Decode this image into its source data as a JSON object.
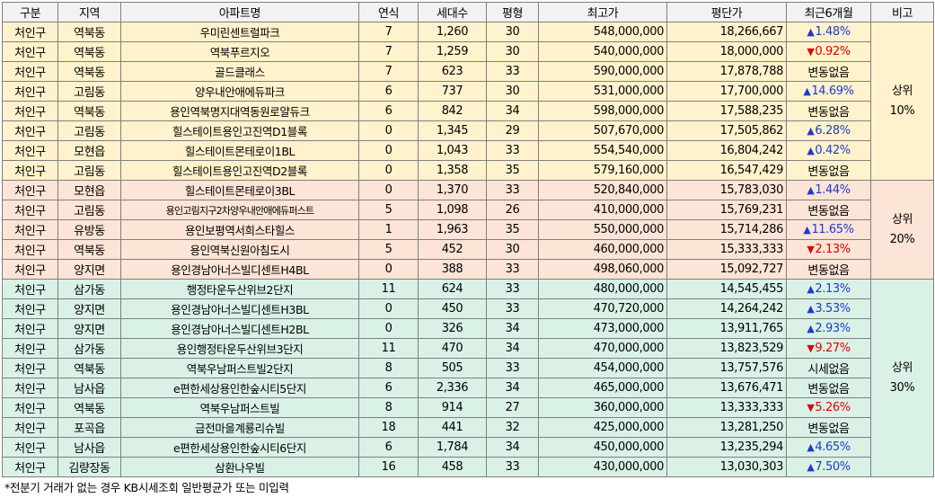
{
  "headers": [
    "구분",
    "지역",
    "아파트명",
    "연식",
    "세대수",
    "평형",
    "최고가",
    "평단가",
    "최근6개월",
    "비고"
  ],
  "tiers": [
    {
      "label_top": "상위",
      "label_bottom": "10%",
      "color": "#fff2cc",
      "rows": [
        {
          "gu": "처인구",
          "dong": "역북동",
          "apt": "우미린센트럴파크",
          "age": "7",
          "units": "1,260",
          "pyeong": "30",
          "max_price": "548,000,000",
          "per_pyeong": "18,266,667",
          "trend": "up",
          "change": "1.48%"
        },
        {
          "gu": "처인구",
          "dong": "역북동",
          "apt": "역북푸르지오",
          "age": "7",
          "units": "1,259",
          "pyeong": "30",
          "max_price": "540,000,000",
          "per_pyeong": "18,000,000",
          "trend": "down",
          "change": "0.92%"
        },
        {
          "gu": "처인구",
          "dong": "역북동",
          "apt": "골드클래스",
          "age": "7",
          "units": "623",
          "pyeong": "33",
          "max_price": "590,000,000",
          "per_pyeong": "17,878,788",
          "trend": "none",
          "change": "변동없음"
        },
        {
          "gu": "처인구",
          "dong": "고림동",
          "apt": "양우내안애에듀파크",
          "age": "6",
          "units": "737",
          "pyeong": "30",
          "max_price": "531,000,000",
          "per_pyeong": "17,700,000",
          "trend": "up",
          "change": "14.69%"
        },
        {
          "gu": "처인구",
          "dong": "역북동",
          "apt": "용인역북명지대역동원로얄듀크",
          "age": "6",
          "units": "842",
          "pyeong": "34",
          "max_price": "598,000,000",
          "per_pyeong": "17,588,235",
          "trend": "none",
          "change": "변동없음"
        },
        {
          "gu": "처인구",
          "dong": "고림동",
          "apt": "힐스테이트용인고진역D1블록",
          "age": "0",
          "units": "1,345",
          "pyeong": "29",
          "max_price": "507,670,000",
          "per_pyeong": "17,505,862",
          "trend": "up",
          "change": "6.28%"
        },
        {
          "gu": "처인구",
          "dong": "모현읍",
          "apt": "힐스테이트몬테로이1BL",
          "age": "0",
          "units": "1,043",
          "pyeong": "33",
          "max_price": "554,540,000",
          "per_pyeong": "16,804,242",
          "trend": "up",
          "change": "0.42%"
        },
        {
          "gu": "처인구",
          "dong": "고림동",
          "apt": "힐스테이트용인고진역D2블록",
          "age": "0",
          "units": "1,358",
          "pyeong": "35",
          "max_price": "579,160,000",
          "per_pyeong": "16,547,429",
          "trend": "none",
          "change": "변동없음"
        }
      ]
    },
    {
      "label_top": "상위",
      "label_bottom": "20%",
      "color": "#fce4d6",
      "rows": [
        {
          "gu": "처인구",
          "dong": "모현읍",
          "apt": "힐스테이트몬테로이3BL",
          "age": "0",
          "units": "1,370",
          "pyeong": "33",
          "max_price": "520,840,000",
          "per_pyeong": "15,783,030",
          "trend": "up",
          "change": "1.44%"
        },
        {
          "gu": "처인구",
          "dong": "고림동",
          "apt": "용인고림지구2차양우내안애에듀퍼스트",
          "age": "5",
          "units": "1,098",
          "pyeong": "26",
          "max_price": "410,000,000",
          "per_pyeong": "15,769,231",
          "trend": "none",
          "change": "변동없음",
          "small": true
        },
        {
          "gu": "처인구",
          "dong": "유방동",
          "apt": "용인보평역서희스타힐스",
          "age": "1",
          "units": "1,963",
          "pyeong": "35",
          "max_price": "550,000,000",
          "per_pyeong": "15,714,286",
          "trend": "up",
          "change": "11.65%"
        },
        {
          "gu": "처인구",
          "dong": "역북동",
          "apt": "용인역북신원아침도시",
          "age": "5",
          "units": "452",
          "pyeong": "30",
          "max_price": "460,000,000",
          "per_pyeong": "15,333,333",
          "trend": "down",
          "change": "2.13%"
        },
        {
          "gu": "처인구",
          "dong": "양지면",
          "apt": "용인경남아너스빌디센트H4BL",
          "age": "0",
          "units": "388",
          "pyeong": "33",
          "max_price": "498,060,000",
          "per_pyeong": "15,092,727",
          "trend": "none",
          "change": "변동없음"
        }
      ]
    },
    {
      "label_top": "상위",
      "label_bottom": "30%",
      "color": "#daf2e6",
      "rows": [
        {
          "gu": "처인구",
          "dong": "삼가동",
          "apt": "행정타운두산위브2단지",
          "age": "11",
          "units": "624",
          "pyeong": "33",
          "max_price": "480,000,000",
          "per_pyeong": "14,545,455",
          "trend": "up",
          "change": "2.13%"
        },
        {
          "gu": "처인구",
          "dong": "양지면",
          "apt": "용인경남아너스빌디센트H3BL",
          "age": "0",
          "units": "450",
          "pyeong": "33",
          "max_price": "470,720,000",
          "per_pyeong": "14,264,242",
          "trend": "up",
          "change": "3.53%"
        },
        {
          "gu": "처인구",
          "dong": "양지면",
          "apt": "용인경남아너스빌디센트H2BL",
          "age": "0",
          "units": "326",
          "pyeong": "34",
          "max_price": "473,000,000",
          "per_pyeong": "13,911,765",
          "trend": "up",
          "change": "2.93%"
        },
        {
          "gu": "처인구",
          "dong": "삼가동",
          "apt": "용인행정타운두산위브3단지",
          "age": "11",
          "units": "470",
          "pyeong": "34",
          "max_price": "470,000,000",
          "per_pyeong": "13,823,529",
          "trend": "down",
          "change": "9.27%"
        },
        {
          "gu": "처인구",
          "dong": "역북동",
          "apt": "역북우남퍼스트빌2단지",
          "age": "8",
          "units": "505",
          "pyeong": "33",
          "max_price": "454,000,000",
          "per_pyeong": "13,757,576",
          "trend": "none",
          "change": "시세없음"
        },
        {
          "gu": "처인구",
          "dong": "남사읍",
          "apt": "e편한세상용인한숲시티5단지",
          "age": "6",
          "units": "2,336",
          "pyeong": "34",
          "max_price": "465,000,000",
          "per_pyeong": "13,676,471",
          "trend": "none",
          "change": "변동없음"
        },
        {
          "gu": "처인구",
          "dong": "역북동",
          "apt": "역북우남퍼스트빌",
          "age": "8",
          "units": "914",
          "pyeong": "27",
          "max_price": "360,000,000",
          "per_pyeong": "13,333,333",
          "trend": "down",
          "change": "5.26%"
        },
        {
          "gu": "처인구",
          "dong": "포곡읍",
          "apt": "금전마을계룡리슈빌",
          "age": "18",
          "units": "441",
          "pyeong": "32",
          "max_price": "425,000,000",
          "per_pyeong": "13,281,250",
          "trend": "none",
          "change": "변동없음"
        },
        {
          "gu": "처인구",
          "dong": "남사읍",
          "apt": "e편한세상용인한숲시티6단지",
          "age": "6",
          "units": "1,784",
          "pyeong": "34",
          "max_price": "450,000,000",
          "per_pyeong": "13,235,294",
          "trend": "up",
          "change": "4.65%"
        },
        {
          "gu": "처인구",
          "dong": "김량장동",
          "apt": "삼환나우빌",
          "age": "16",
          "units": "458",
          "pyeong": "33",
          "max_price": "430,000,000",
          "per_pyeong": "13,030,303",
          "trend": "up",
          "change": "7.50%"
        }
      ]
    }
  ],
  "colors": {
    "up": "#1f3cc9",
    "down": "#e00000",
    "header_bg": "#f2f2f2"
  },
  "footnote": "*전분기 거래가 없는 경우 KB시세조회 일반평균가 또는 미입력"
}
